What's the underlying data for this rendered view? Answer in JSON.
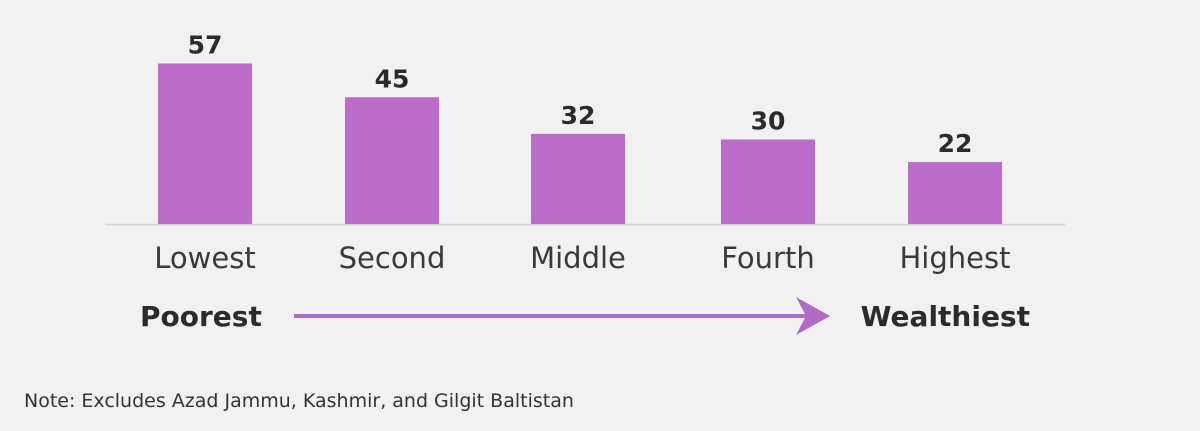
{
  "chart_data": {
    "type": "bar",
    "categories": [
      "Lowest",
      "Second",
      "Middle",
      "Fourth",
      "Highest"
    ],
    "values": [
      57,
      45,
      32,
      30,
      22
    ],
    "ylim": [
      0,
      62
    ],
    "bar_color": "#bb6bc8",
    "arrow_color": "#b06bc4",
    "axis_color": "#d6d6d6",
    "grid": false,
    "scale_left_label": "Poorest",
    "scale_right_label": "Wealthiest"
  },
  "note": "Note: Excludes Azad Jammu, Kashmir, and Gilgit Baltistan"
}
